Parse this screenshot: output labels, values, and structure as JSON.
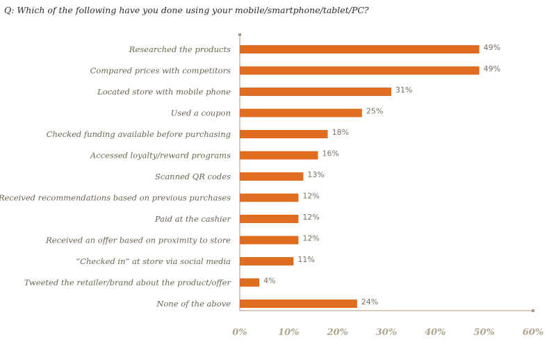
{
  "question": "Q: Which of the following have you done using your mobile/smartphone/tablet/PC?",
  "colors": {
    "bar": "#e06d1f",
    "axis": "#a89a80",
    "category_text": "#6b6350",
    "value_text": "#7a7060",
    "tick_text": "#b0a38e"
  },
  "chart_data": {
    "type": "bar",
    "orientation": "horizontal",
    "title": "Q: Which of the following have you done using your mobile/smartphone/tablet/PC?",
    "xlabel": "",
    "ylabel": "",
    "xlim": [
      0,
      60
    ],
    "grid": false,
    "value_suffix": "%",
    "categories": [
      "Researched the products",
      "Compared prices with competitors",
      "Located store with mobile phone",
      "Used a coupon",
      "Checked funding available before purchasing",
      "Accessed loyalty/reward programs",
      "Scanned QR codes",
      "Received recommendations based on previous purchases",
      "Paid at the cashier",
      "Received an offer based on proximity to store",
      "“Checked in” at store via social media",
      "Tweeted the retailer/brand about the product/offer",
      "None of the above"
    ],
    "values": [
      49,
      49,
      31,
      25,
      18,
      16,
      13,
      12,
      12,
      12,
      11,
      4,
      24
    ],
    "value_labels": [
      "49%",
      "49%",
      "31%",
      "25%",
      "18%",
      "16%",
      "13%",
      "12%",
      "12%",
      "12%",
      "11%",
      "4%",
      "24%"
    ],
    "x_ticks": [
      0,
      10,
      20,
      30,
      40,
      50,
      60
    ],
    "x_tick_labels": [
      "0%",
      "10%",
      "20%",
      "30%",
      "40%",
      "50%",
      "60%"
    ]
  }
}
